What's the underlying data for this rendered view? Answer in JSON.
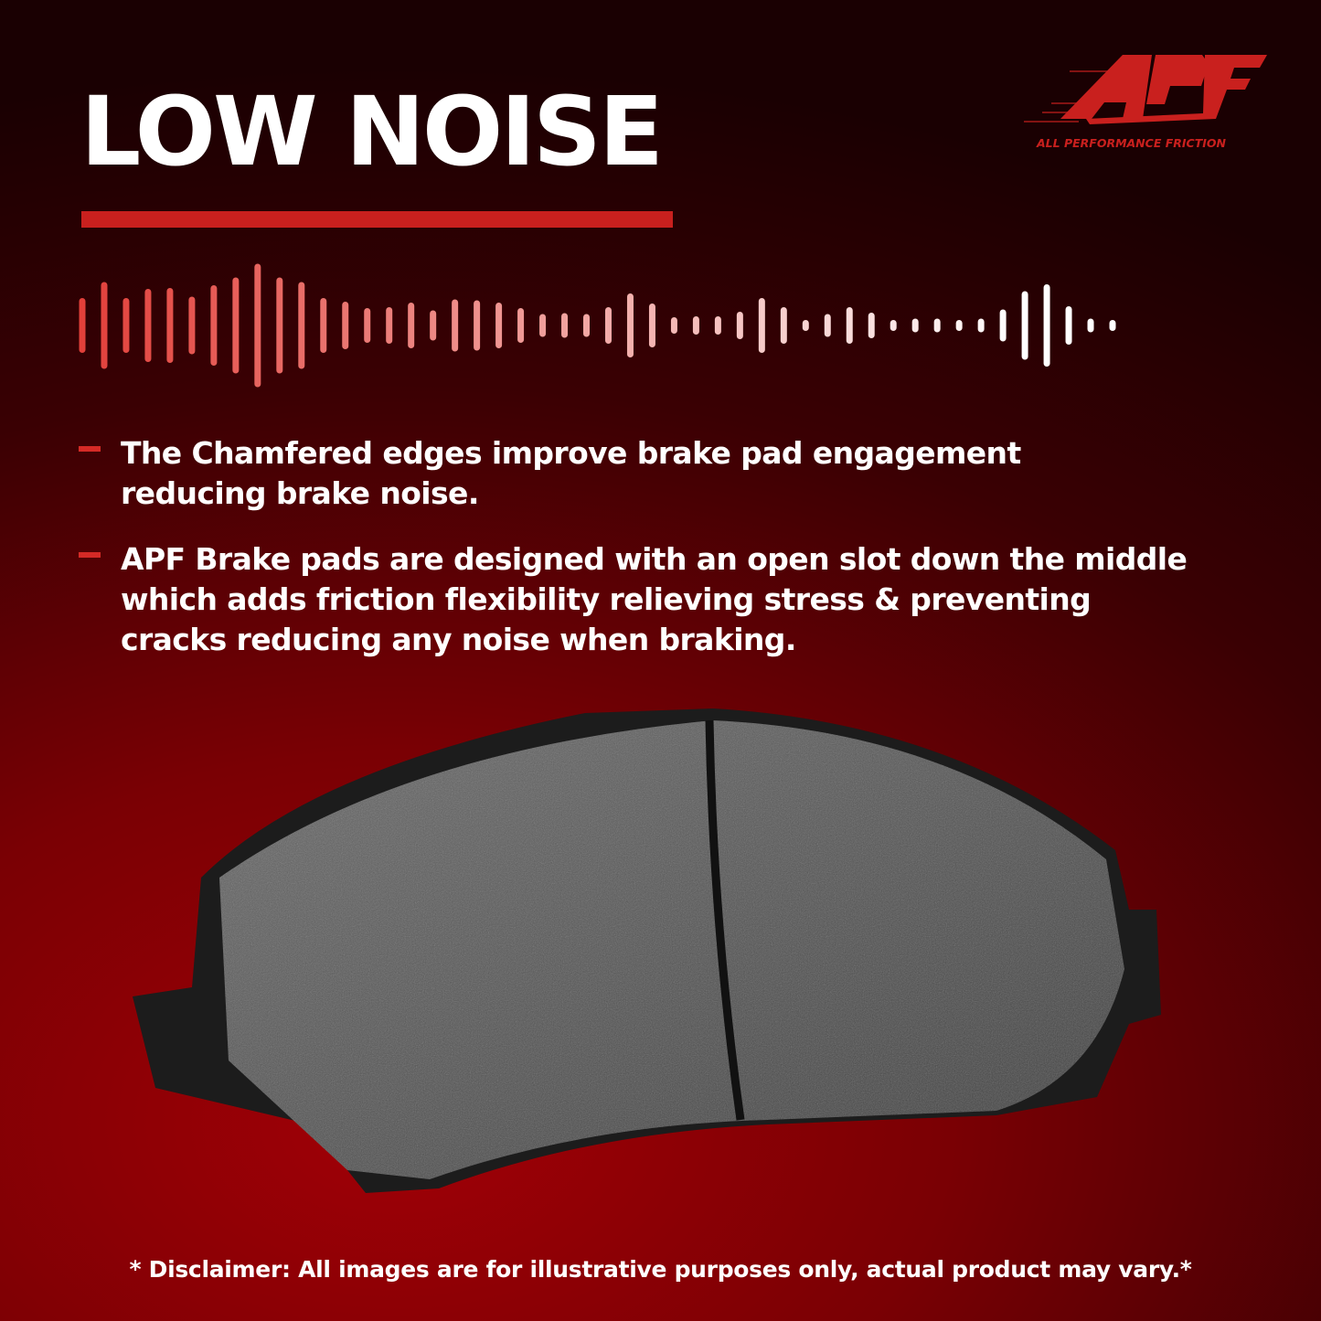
{
  "headline": "LOW NOISE",
  "logo": {
    "mark": "APF",
    "tagline": "ALL PERFORMANCE FRICTION",
    "color": "#c9201e"
  },
  "bullets": [
    {
      "text": "The Chamfered edges improve brake pad engagement\nreducing brake noise."
    },
    {
      "text": "APF Brake pads are designed with an open slot down the middle\nwhich adds friction flexibility relieving stress & preventing\n cracks reducing any noise when braking."
    }
  ],
  "disclaimer": "* Disclaimer: All images are for illustrative purposes only, actual product may vary.*",
  "colors": {
    "accent": "#c9201e",
    "background": "#7a0004",
    "wave_start": "#e2403a",
    "wave_end": "#ffffff"
  }
}
